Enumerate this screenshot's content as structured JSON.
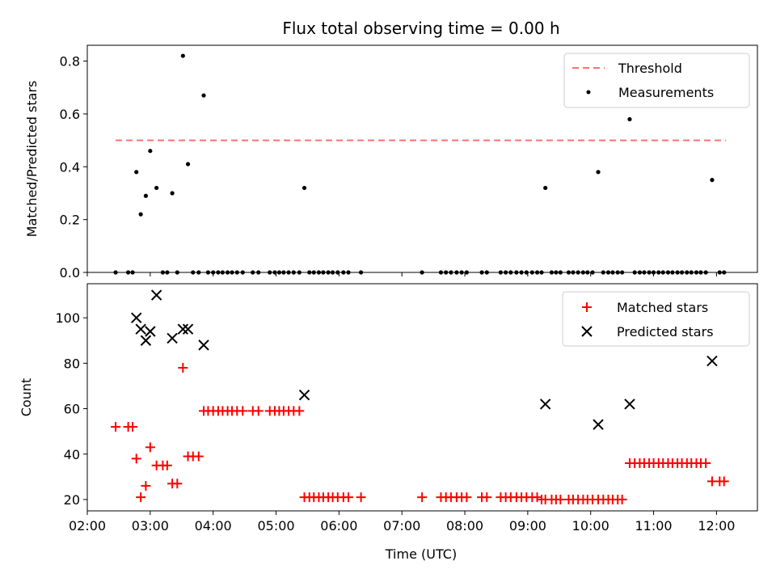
{
  "chart_data": {
    "title": "Flux total observing time = 0.00 h",
    "xlabel": "Time (UTC)",
    "x_unit": "hours UTC",
    "xlim": [
      2.0,
      12.65
    ],
    "x_ticks": [
      2,
      3,
      4,
      5,
      6,
      7,
      8,
      9,
      10,
      11,
      12
    ],
    "x_tick_labels": [
      "02:00",
      "03:00",
      "04:00",
      "05:00",
      "06:00",
      "07:00",
      "08:00",
      "09:00",
      "10:00",
      "11:00",
      "12:00"
    ],
    "panels": [
      {
        "type": "scatter",
        "ylabel": "Matched/Predicted stars",
        "ylim": [
          0,
          0.86
        ],
        "y_ticks": [
          0,
          0.2,
          0.4,
          0.6,
          0.8
        ],
        "y_tick_labels": [
          "0.0",
          "0.2",
          "0.4",
          "0.6",
          "0.8"
        ],
        "legend_position": "top-right",
        "threshold": {
          "name": "Threshold",
          "y": 0.5,
          "x_range": [
            2.45,
            12.15
          ],
          "color": "#ff7070"
        },
        "measurements": {
          "name": "Measurements",
          "color": "#000000",
          "x": [
            2.45,
            2.65,
            2.72,
            2.78,
            2.85,
            2.93,
            3.0,
            3.1,
            3.2,
            3.27,
            3.35,
            3.43,
            3.52,
            3.6,
            3.68,
            3.77,
            3.85,
            3.92,
            4.0,
            4.08,
            4.15,
            4.23,
            4.3,
            4.38,
            4.47,
            4.63,
            4.72,
            4.9,
            4.98,
            5.05,
            5.12,
            5.2,
            5.28,
            5.37,
            5.45,
            5.53,
            5.6,
            5.68,
            5.75,
            5.83,
            5.9,
            5.98,
            6.07,
            6.15,
            6.35,
            7.32,
            7.62,
            7.7,
            7.78,
            7.87,
            7.95,
            8.03,
            8.27,
            8.35,
            8.57,
            8.65,
            8.73,
            8.82,
            8.9,
            8.98,
            9.07,
            9.15,
            9.22,
            9.28,
            9.38,
            9.45,
            9.52,
            9.65,
            9.72,
            9.8,
            9.88,
            9.95,
            10.03,
            10.12,
            10.2,
            10.28,
            10.35,
            10.43,
            10.5,
            10.62,
            10.7,
            10.78,
            10.85,
            10.93,
            11.0,
            11.08,
            11.15,
            11.23,
            11.3,
            11.38,
            11.45,
            11.53,
            11.6,
            11.68,
            11.75,
            11.83,
            11.93,
            12.05,
            12.12
          ],
          "y": [
            0,
            0,
            0,
            0.38,
            0.22,
            0.29,
            0.46,
            0.32,
            0,
            0,
            0.3,
            0,
            0.82,
            0.41,
            0,
            0,
            0.67,
            0,
            0,
            0,
            0,
            0,
            0,
            0,
            0,
            0,
            0,
            0,
            0,
            0,
            0,
            0,
            0,
            0,
            0.32,
            0,
            0,
            0,
            0,
            0,
            0,
            0,
            0,
            0,
            0,
            0,
            0,
            0,
            0,
            0,
            0,
            0,
            0,
            0,
            0,
            0,
            0,
            0,
            0,
            0,
            0,
            0,
            0,
            0.32,
            0,
            0,
            0,
            0,
            0,
            0,
            0,
            0,
            0,
            0.38,
            0,
            0,
            0,
            0,
            0,
            0.58,
            0,
            0,
            0,
            0,
            0,
            0,
            0,
            0,
            0,
            0,
            0,
            0,
            0,
            0,
            0,
            0,
            0.35,
            0,
            0
          ]
        }
      },
      {
        "type": "scatter",
        "ylabel": "Count",
        "ylim": [
          15,
          115
        ],
        "y_ticks": [
          20,
          40,
          60,
          80,
          100
        ],
        "y_tick_labels": [
          "20",
          "40",
          "60",
          "80",
          "100"
        ],
        "legend_position": "top-right",
        "series": [
          {
            "name": "Matched stars",
            "marker": "plus",
            "color": "#ff0000",
            "x": [
              2.45,
              2.65,
              2.72,
              2.78,
              2.85,
              2.93,
              3.0,
              3.1,
              3.2,
              3.27,
              3.35,
              3.43,
              3.52,
              3.6,
              3.68,
              3.77,
              3.85,
              3.92,
              4.0,
              4.08,
              4.15,
              4.23,
              4.3,
              4.38,
              4.47,
              4.63,
              4.72,
              4.9,
              4.98,
              5.05,
              5.12,
              5.2,
              5.28,
              5.37,
              5.45,
              5.53,
              5.6,
              5.68,
              5.75,
              5.83,
              5.9,
              5.98,
              6.07,
              6.15,
              6.35,
              7.32,
              7.62,
              7.7,
              7.78,
              7.87,
              7.95,
              8.03,
              8.27,
              8.35,
              8.57,
              8.65,
              8.73,
              8.82,
              8.9,
              8.98,
              9.07,
              9.15,
              9.22,
              9.28,
              9.38,
              9.45,
              9.52,
              9.65,
              9.72,
              9.8,
              9.88,
              9.95,
              10.03,
              10.12,
              10.2,
              10.28,
              10.35,
              10.43,
              10.5,
              10.62,
              10.7,
              10.78,
              10.85,
              10.93,
              11.0,
              11.08,
              11.15,
              11.23,
              11.3,
              11.38,
              11.45,
              11.53,
              11.6,
              11.68,
              11.75,
              11.83,
              11.93,
              12.05,
              12.12
            ],
            "y": [
              52,
              52,
              52,
              38,
              21,
              26,
              43,
              35,
              35,
              35,
              27,
              27,
              78,
              39,
              39,
              39,
              59,
              59,
              59,
              59,
              59,
              59,
              59,
              59,
              59,
              59,
              59,
              59,
              59,
              59,
              59,
              59,
              59,
              59,
              21,
              21,
              21,
              21,
              21,
              21,
              21,
              21,
              21,
              21,
              21,
              21,
              21,
              21,
              21,
              21,
              21,
              21,
              21,
              21,
              21,
              21,
              21,
              21,
              21,
              21,
              21,
              21,
              20,
              20,
              20,
              20,
              20,
              20,
              20,
              20,
              20,
              20,
              20,
              20,
              20,
              20,
              20,
              20,
              20,
              36,
              36,
              36,
              36,
              36,
              36,
              36,
              36,
              36,
              36,
              36,
              36,
              36,
              36,
              36,
              36,
              36,
              28,
              28,
              28
            ]
          },
          {
            "name": "Predicted stars",
            "marker": "x",
            "color": "#000000",
            "x": [
              2.78,
              2.85,
              2.93,
              3.0,
              3.1,
              3.35,
              3.52,
              3.6,
              3.85,
              5.45,
              9.28,
              10.12,
              10.62,
              11.93
            ],
            "y": [
              100,
              95,
              90,
              94,
              110,
              91,
              95,
              95,
              88,
              66,
              62,
              53,
              62,
              81
            ]
          }
        ]
      }
    ]
  }
}
